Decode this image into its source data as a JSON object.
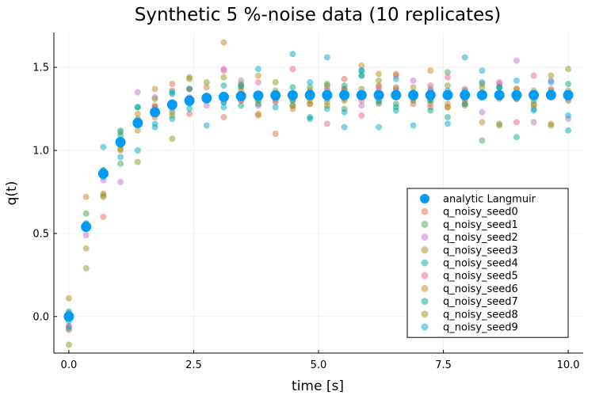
{
  "chart_data": {
    "type": "scatter",
    "title": "Synthetic 5 %-noise data (10 replicates)",
    "xlabel": "time [s]",
    "ylabel": "q(t)",
    "xlim": [
      -0.3,
      10.3
    ],
    "ylim": [
      -0.22,
      1.71
    ],
    "xticks": [
      0.0,
      2.5,
      5.0,
      7.5,
      10.0
    ],
    "xtick_labels": [
      "0.0",
      "2.5",
      "5.0",
      "7.5",
      "10.0"
    ],
    "yticks": [
      0.0,
      0.5,
      1.0,
      1.5
    ],
    "ytick_labels": [
      "0.0",
      "0.5",
      "1.0",
      "1.5"
    ],
    "grid": true,
    "legend_position": "bottom-right",
    "x": [
      0.0,
      0.345,
      0.69,
      1.034,
      1.379,
      1.724,
      2.069,
      2.414,
      2.759,
      3.103,
      3.448,
      3.793,
      4.138,
      4.483,
      4.828,
      5.172,
      5.517,
      5.862,
      6.207,
      6.552,
      6.897,
      7.241,
      7.586,
      7.931,
      8.276,
      8.621,
      8.966,
      9.31,
      9.655,
      10.0
    ],
    "series": [
      {
        "name": "analytic Langmuir",
        "color": "#009af9",
        "values": [
          0.0,
          0.54,
          0.86,
          1.05,
          1.165,
          1.23,
          1.275,
          1.3,
          1.315,
          1.322,
          1.327,
          1.33,
          1.331,
          1.332,
          1.333,
          1.333,
          1.333,
          1.333,
          1.333,
          1.333,
          1.333,
          1.333,
          1.333,
          1.333,
          1.333,
          1.333,
          1.333,
          1.333,
          1.333,
          1.333
        ]
      },
      {
        "name": "q_noisy_seed0",
        "color": "#e26f46",
        "values": [
          -0.06,
          0.53,
          0.6,
          1.03,
          1.18,
          1.2,
          1.4,
          1.22,
          1.32,
          1.2,
          1.3,
          1.22,
          1.1,
          1.25,
          1.28,
          1.36,
          1.43,
          1.3,
          1.28,
          1.36,
          1.28,
          1.39,
          1.26,
          1.33,
          1.4,
          1.38,
          1.31,
          1.28,
          1.37,
          1.32
        ]
      },
      {
        "name": "q_noisy_seed1",
        "color": "#3da44d",
        "values": [
          0.02,
          0.62,
          0.88,
          0.92,
          1.19,
          1.26,
          1.23,
          1.29,
          1.3,
          1.33,
          1.38,
          1.3,
          1.33,
          1.27,
          1.38,
          1.4,
          1.25,
          1.45,
          1.3,
          1.28,
          1.3,
          1.36,
          1.47,
          1.28,
          1.06,
          1.16,
          1.32,
          1.25,
          1.36,
          1.3
        ]
      },
      {
        "name": "q_noisy_seed2",
        "color": "#c271d2",
        "values": [
          -0.06,
          0.49,
          0.82,
          0.81,
          1.35,
          1.32,
          1.25,
          1.32,
          1.27,
          1.49,
          1.42,
          1.27,
          1.29,
          1.3,
          1.35,
          1.37,
          1.37,
          1.27,
          1.36,
          1.37,
          1.42,
          1.37,
          1.34,
          1.31,
          1.23,
          1.41,
          1.54,
          1.17,
          1.42,
          1.19
        ]
      },
      {
        "name": "q_noisy_seed3",
        "color": "#ac8d18",
        "values": [
          0.11,
          0.41,
          0.72,
          1.11,
          1.12,
          1.27,
          1.21,
          1.43,
          1.3,
          1.29,
          1.39,
          1.21,
          1.36,
          1.27,
          1.36,
          1.27,
          1.37,
          1.33,
          1.39,
          1.38,
          1.31,
          1.28,
          1.26,
          1.27,
          1.33,
          1.15,
          1.37,
          1.36,
          1.45,
          1.36
        ]
      },
      {
        "name": "q_noisy_seed4",
        "color": "#00a9ad",
        "values": [
          -0.03,
          0.54,
          0.84,
          1.12,
          1.26,
          1.16,
          1.19,
          1.28,
          1.33,
          1.26,
          1.32,
          1.34,
          1.26,
          1.3,
          1.19,
          1.25,
          1.23,
          1.45,
          1.34,
          1.24,
          1.32,
          1.3,
          1.36,
          1.28,
          1.41,
          1.33,
          1.31,
          1.33,
          1.33,
          1.12
        ]
      },
      {
        "name": "q_noisy_seed5",
        "color": "#ed5e93",
        "values": [
          0.01,
          0.55,
          0.86,
          1.06,
          1.18,
          1.26,
          1.29,
          1.37,
          1.31,
          1.48,
          1.3,
          1.41,
          1.31,
          1.49,
          1.34,
          1.16,
          1.31,
          1.21,
          1.38,
          1.45,
          1.34,
          1.26,
          1.44,
          1.37,
          1.35,
          1.4,
          1.17,
          1.45,
          1.34,
          1.31
        ]
      },
      {
        "name": "q_noisy_seed6",
        "color": "#c68225",
        "values": [
          -0.08,
          0.72,
          0.74,
          1.0,
          1.22,
          1.37,
          1.36,
          1.37,
          1.38,
          1.65,
          1.36,
          1.45,
          1.3,
          1.31,
          1.28,
          1.29,
          1.36,
          1.51,
          1.46,
          1.46,
          1.35,
          1.48,
          1.28,
          1.3,
          1.17,
          1.31,
          1.37,
          1.34,
          1.16,
          1.33
        ]
      },
      {
        "name": "q_noisy_seed7",
        "color": "#00a98d",
        "values": [
          0.03,
          0.56,
          0.88,
          1.09,
          1.26,
          1.23,
          1.34,
          1.37,
          1.31,
          1.39,
          1.27,
          1.28,
          1.32,
          1.38,
          1.2,
          1.31,
          1.39,
          1.48,
          1.29,
          1.26,
          1.33,
          1.24,
          1.2,
          1.36,
          1.32,
          1.38,
          1.08,
          1.3,
          1.34,
          1.4
        ]
      },
      {
        "name": "q_noisy_seed8",
        "color": "#8e971d",
        "values": [
          -0.17,
          0.29,
          0.73,
          1.01,
          0.93,
          1.31,
          1.07,
          1.44,
          1.41,
          1.44,
          1.4,
          1.3,
          1.41,
          1.32,
          1.3,
          1.39,
          1.3,
          1.37,
          1.42,
          1.32,
          1.38,
          1.3,
          1.39,
          1.34,
          1.38,
          1.32,
          1.33,
          1.27,
          1.15,
          1.49
        ]
      },
      {
        "name": "q_noisy_seed9",
        "color": "#00a8cb",
        "values": [
          -0.07,
          0.56,
          1.02,
          0.96,
          1.0,
          1.14,
          1.35,
          1.25,
          1.15,
          1.29,
          1.39,
          1.49,
          1.32,
          1.58,
          1.41,
          1.56,
          1.14,
          1.48,
          1.14,
          1.43,
          1.15,
          1.31,
          1.16,
          1.56,
          1.48,
          1.38,
          1.42,
          1.24,
          1.41,
          1.21
        ]
      }
    ]
  }
}
